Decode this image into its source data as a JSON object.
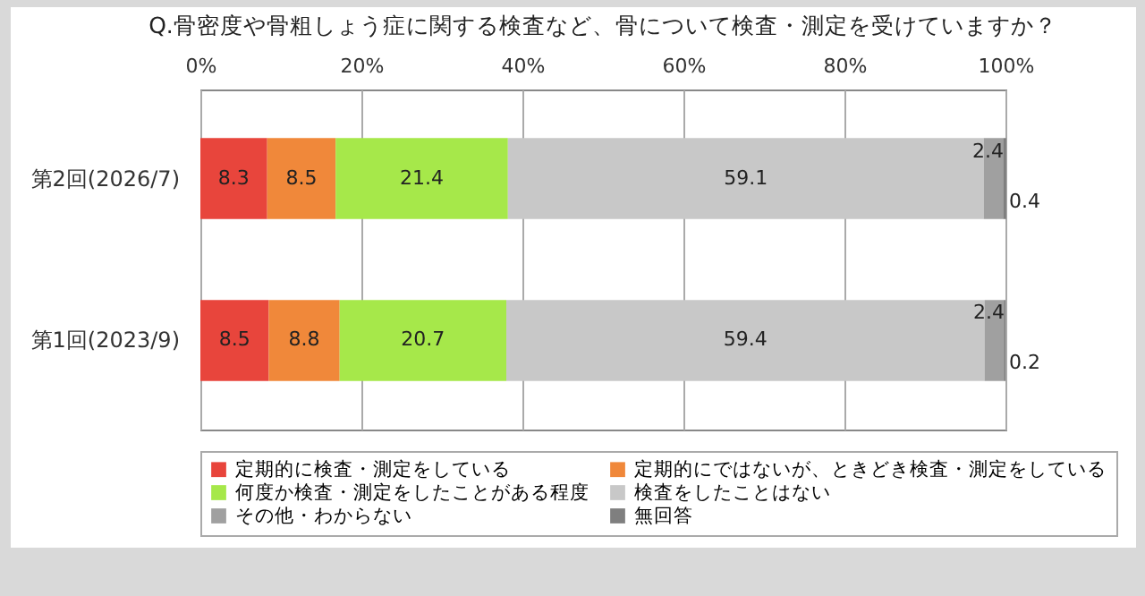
{
  "chart_data": {
    "type": "bar",
    "orientation": "horizontal",
    "stacked": true,
    "title": "Q.骨密度や骨粗しょう症に関する検査など、骨について検査・測定を受けていますか？",
    "categories": [
      "第2回(2026/7)",
      "第1回(2023/9)"
    ],
    "series": [
      {
        "name": "定期的に検査・測定をしている",
        "color": "#e8453c",
        "values": [
          8.3,
          8.5
        ]
      },
      {
        "name": "定期的にではないが、ときどき検査・測定をしている",
        "color": "#f0883a",
        "values": [
          8.5,
          8.8
        ]
      },
      {
        "name": "何度か検査・測定をしたことがある程度",
        "color": "#a6e84a",
        "values": [
          21.4,
          20.7
        ]
      },
      {
        "name": "検査をしたことはない",
        "color": "#c8c8c8",
        "values": [
          59.1,
          59.4
        ]
      },
      {
        "name": "その他・わからない",
        "color": "#a0a0a0",
        "values": [
          2.4,
          2.4
        ]
      },
      {
        "name": "無回答",
        "color": "#7f7f7f",
        "values": [
          0.4,
          0.2
        ]
      }
    ],
    "xlim": [
      0,
      100
    ],
    "xticks": [
      {
        "value": 0,
        "label": "0%"
      },
      {
        "value": 20,
        "label": "20%"
      },
      {
        "value": 40,
        "label": "40%"
      },
      {
        "value": 60,
        "label": "60%"
      },
      {
        "value": 80,
        "label": "80%"
      },
      {
        "value": 100,
        "label": "100%"
      }
    ],
    "grid": "x",
    "data_labels": true,
    "legend": "bottom"
  }
}
